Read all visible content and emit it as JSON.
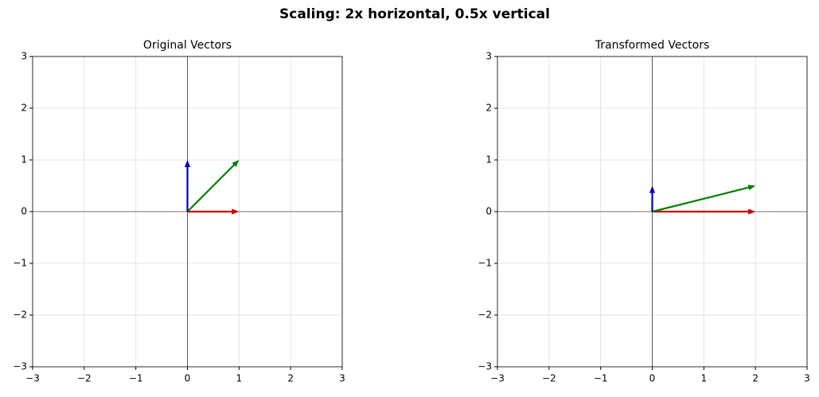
{
  "title": "Scaling: 2x horizontal, 0.5x vertical",
  "chart_data": [
    {
      "type": "vector",
      "title": "Original Vectors",
      "xlim": [
        -3,
        3
      ],
      "ylim": [
        -3,
        3
      ],
      "xticks": [
        {
          "value": -3,
          "label": "−3"
        },
        {
          "value": -2,
          "label": "−2"
        },
        {
          "value": -1,
          "label": "−1"
        },
        0,
        1,
        2,
        3
      ],
      "yticks": [
        {
          "value": -3,
          "label": "−3"
        },
        {
          "value": -2,
          "label": "−2"
        },
        {
          "value": -1,
          "label": "−1"
        },
        0,
        1,
        2,
        3
      ],
      "grid": true,
      "vectors": [
        {
          "color": "#cc0000",
          "u": 1,
          "v": 0
        },
        {
          "color": "#007f00",
          "u": 1,
          "v": 1
        },
        {
          "color": "#0000bf",
          "u": 0,
          "v": 1
        }
      ]
    },
    {
      "type": "vector",
      "title": "Transformed Vectors",
      "xlim": [
        -3,
        3
      ],
      "ylim": [
        -3,
        3
      ],
      "xticks": [
        {
          "value": -3,
          "label": "−3"
        },
        {
          "value": -2,
          "label": "−2"
        },
        {
          "value": -1,
          "label": "−1"
        },
        0,
        1,
        2,
        3
      ],
      "yticks": [
        {
          "value": -3,
          "label": "−3"
        },
        {
          "value": -2,
          "label": "−2"
        },
        {
          "value": -1,
          "label": "−1"
        },
        0,
        1,
        2,
        3
      ],
      "grid": true,
      "vectors": [
        {
          "color": "#cc0000",
          "u": 2,
          "v": 0
        },
        {
          "color": "#007f00",
          "u": 2,
          "v": 0.5
        },
        {
          "color": "#0000bf",
          "u": 0,
          "v": 0.5
        }
      ]
    }
  ]
}
